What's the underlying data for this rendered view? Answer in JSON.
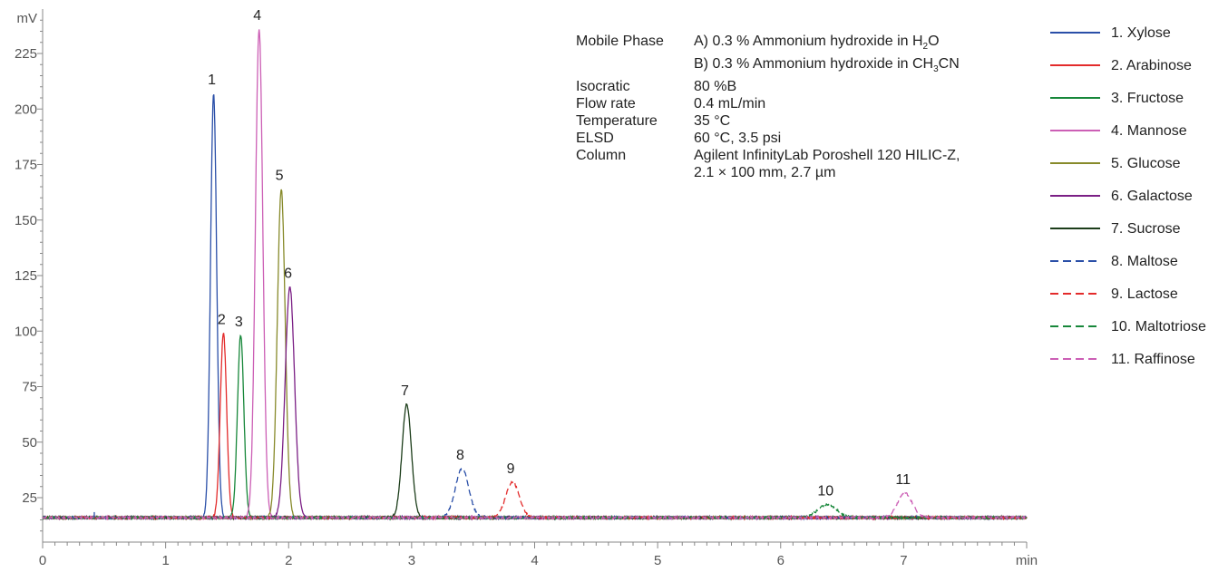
{
  "chart_data": {
    "type": "line",
    "y_unit": "mV",
    "x_unit": "min",
    "xlim": [
      0,
      8
    ],
    "ylim": [
      5,
      245
    ],
    "x_ticks": [
      0,
      1,
      2,
      3,
      4,
      5,
      6,
      7
    ],
    "x_tick_labels": [
      "0",
      "1",
      "2",
      "3",
      "4",
      "5",
      "6",
      "7"
    ],
    "y_ticks": [
      25,
      50,
      75,
      100,
      125,
      150,
      175,
      200,
      225
    ],
    "y_tick_labels": [
      "25",
      "50",
      "75",
      "100",
      "125",
      "150",
      "175",
      "200",
      "225"
    ],
    "baseline": 16,
    "legend_position": "right",
    "series": [
      {
        "name": "1. Xylose",
        "label": "1",
        "color": "#2a4fa8",
        "dash": "solid",
        "rt": 1.39,
        "height": 207,
        "width": 0.025
      },
      {
        "name": "2. Arabinose",
        "label": "2",
        "color": "#e32b2b",
        "dash": "solid",
        "rt": 1.47,
        "height": 99,
        "width": 0.026
      },
      {
        "name": "3. Fructose",
        "label": "3",
        "color": "#17873a",
        "dash": "solid",
        "rt": 1.61,
        "height": 98,
        "width": 0.026
      },
      {
        "name": "4. Mannose",
        "label": "4",
        "color": "#cc5fb5",
        "dash": "solid",
        "rt": 1.76,
        "height": 236,
        "width": 0.03
      },
      {
        "name": "5. Glucose",
        "label": "5",
        "color": "#878a2a",
        "dash": "solid",
        "rt": 1.94,
        "height": 164,
        "width": 0.032
      },
      {
        "name": "6. Galactose",
        "label": "6",
        "color": "#7b1f85",
        "dash": "solid",
        "rt": 2.01,
        "height": 120,
        "width": 0.038
      },
      {
        "name": "7. Sucrose",
        "label": "7",
        "color": "#1c3d1a",
        "dash": "solid",
        "rt": 2.96,
        "height": 67,
        "width": 0.038
      },
      {
        "name": "8. Maltose",
        "label": "8",
        "color": "#2a4fa8",
        "dash": "dashed",
        "rt": 3.41,
        "height": 38,
        "width": 0.055
      },
      {
        "name": "9. Lactose",
        "label": "9",
        "color": "#e32b2b",
        "dash": "dashed",
        "rt": 3.82,
        "height": 32,
        "width": 0.055
      },
      {
        "name": "10. Maltotriose",
        "label": "10",
        "color": "#17873a",
        "dash": "dashed",
        "rt": 6.38,
        "height": 22,
        "width": 0.075
      },
      {
        "name": "11. Raffinose",
        "label": "11",
        "color": "#cc5fb5",
        "dash": "dashed",
        "rt": 7.01,
        "height": 27,
        "width": 0.06
      }
    ]
  },
  "conditions": [
    {
      "key": "Mobile Phase",
      "value": "A) 0.3 % Ammonium hydroxide in H",
      "sub": "2",
      "tail": "O"
    },
    {
      "key": "",
      "value": "B) 0.3 % Ammonium hydroxide in CH",
      "sub": "3",
      "tail": "CN"
    },
    {
      "key": "Isocratic",
      "value": "80 %B",
      "sub": "",
      "tail": ""
    },
    {
      "key": "Flow rate",
      "value": "0.4 mL/min",
      "sub": "",
      "tail": ""
    },
    {
      "key": "Temperature",
      "value": "35 °C",
      "sub": "",
      "tail": ""
    },
    {
      "key": "ELSD",
      "value": "60 °C, 3.5 psi",
      "sub": "",
      "tail": ""
    },
    {
      "key": "Column",
      "value": "Agilent InfinityLab Poroshell 120 HILIC-Z,",
      "sub": "",
      "tail": ""
    },
    {
      "key": "",
      "value": "2.1 × 100 mm, 2.7 µm",
      "sub": "",
      "tail": ""
    }
  ]
}
